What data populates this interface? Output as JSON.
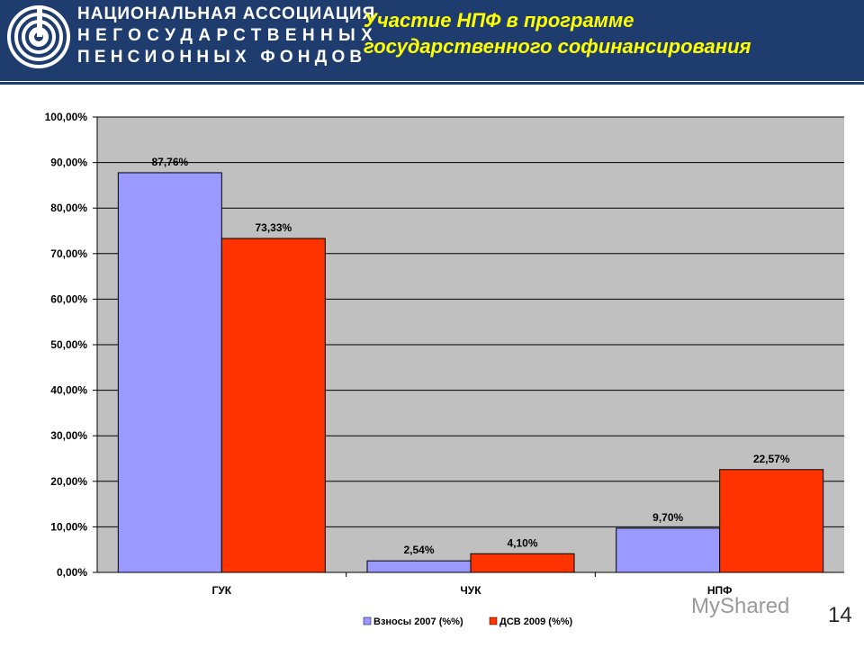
{
  "header": {
    "org_line1": "НАЦИОНАЛЬНАЯ АССОЦИАЦИЯ",
    "org_line2": "НЕГОСУДАРСТВЕННЫХ",
    "org_line3": "ПЕНСИОННЫХ ФОНДОВ",
    "logo_icon": "spiral-logo-icon",
    "colors": {
      "header_bg": "#1f3c6e",
      "title": "#ffff00"
    }
  },
  "slide": {
    "title_line1": "Участие НПФ в программе",
    "title_line2": "государственного софинансирования",
    "page_number": "14",
    "watermark": "MyShared"
  },
  "chart_data": {
    "type": "bar",
    "categories": [
      "ГУК",
      "ЧУК",
      "НПФ"
    ],
    "series": [
      {
        "name": "Взносы 2007 (%%)",
        "values": [
          87.76,
          2.54,
          9.7
        ],
        "labels": [
          "87,76%",
          "2,54%",
          "9,70%"
        ],
        "color": "#9999ff"
      },
      {
        "name": "ДСВ 2009 (%%)",
        "values": [
          73.33,
          4.1,
          22.57
        ],
        "labels": [
          "73,33%",
          "4,10%",
          "22,57%"
        ],
        "color": "#ff3300"
      }
    ],
    "ylim": [
      0,
      100
    ],
    "yticks": [
      0,
      10,
      20,
      30,
      40,
      50,
      60,
      70,
      80,
      90,
      100
    ],
    "ytick_labels": [
      "0,00%",
      "10,00%",
      "20,00%",
      "30,00%",
      "40,00%",
      "50,00%",
      "60,00%",
      "70,00%",
      "80,00%",
      "90,00%",
      "100,00%"
    ],
    "grid": true,
    "legend_position": "bottom",
    "plot_bg": "#c0c0c0"
  }
}
